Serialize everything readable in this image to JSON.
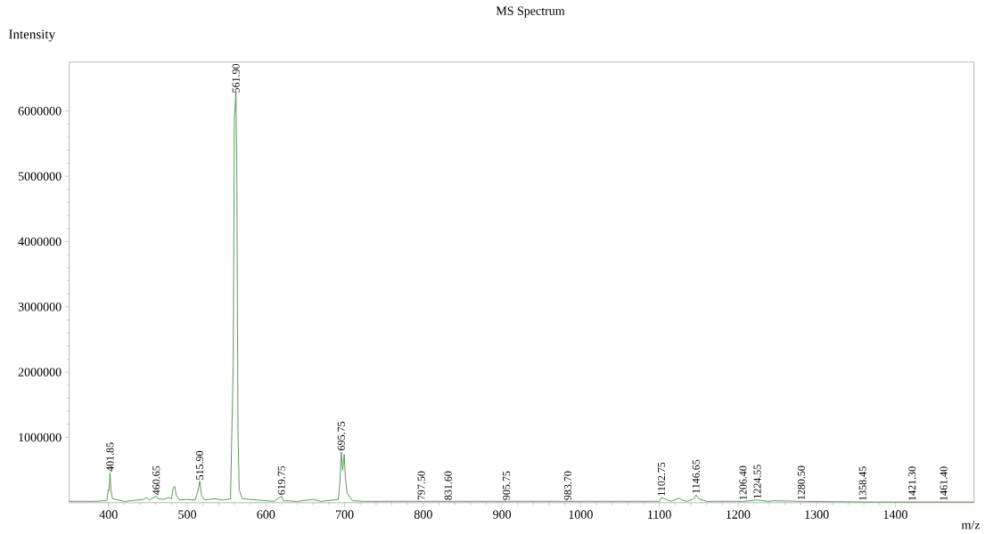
{
  "chart_data": {
    "type": "line",
    "title": "MS Spectrum",
    "xlabel": "m/z",
    "ylabel": "Intensity",
    "x": [
      350,
      380,
      398,
      399.5,
      400.5,
      401.85,
      403,
      405,
      420,
      445,
      448,
      452,
      460.65,
      463,
      470,
      476,
      480,
      482,
      484,
      486,
      490,
      500,
      510,
      514,
      515.9,
      518,
      522,
      535,
      545,
      555,
      558.5,
      559.9,
      561.9,
      563,
      564.5,
      566,
      570,
      590,
      610,
      619.75,
      622,
      640,
      660,
      670,
      692,
      694,
      695.75,
      697.5,
      699.5,
      701,
      703,
      710,
      725,
      760,
      797.5,
      831.6,
      860,
      905.75,
      983.7,
      1050,
      1100,
      1102.75,
      1106,
      1115,
      1125,
      1129,
      1135,
      1144,
      1146.65,
      1150,
      1160,
      1206.4,
      1224.55,
      1240,
      1245,
      1280.5,
      1358.45,
      1421.3,
      1461.4,
      1500
    ],
    "series": [
      {
        "color": "#4a8f4a",
        "values": [
          20000,
          20000,
          30000,
          200000,
          180000,
          460000,
          200000,
          60000,
          20000,
          50000,
          80000,
          40000,
          100000,
          60000,
          50000,
          80000,
          60000,
          220000,
          250000,
          120000,
          40000,
          50000,
          40000,
          200000,
          330000,
          120000,
          40000,
          60000,
          40000,
          60000,
          2150000,
          5900000,
          6300000,
          5100000,
          1100000,
          200000,
          60000,
          40000,
          20000,
          100000,
          30000,
          20000,
          50000,
          20000,
          50000,
          300000,
          780000,
          500000,
          740000,
          380000,
          150000,
          30000,
          20000,
          20000,
          20000,
          20000,
          20000,
          20000,
          20000,
          20000,
          20000,
          80000,
          60000,
          20000,
          70000,
          40000,
          20000,
          60000,
          120000,
          60000,
          20000,
          20000,
          40000,
          20000,
          30000,
          20000,
          10000,
          10000,
          10000,
          10000
        ]
      }
    ],
    "xlim": [
      350,
      1500
    ],
    "ylim": [
      0,
      6750000
    ],
    "xticks": [
      400,
      500,
      600,
      700,
      800,
      900,
      1000,
      1100,
      1200,
      1300,
      1400
    ],
    "yticks": [
      1000000,
      2000000,
      3000000,
      4000000,
      5000000,
      6000000
    ],
    "grid": false,
    "marker": "none",
    "line_style": "solid",
    "annotations": [
      {
        "text": "401.85",
        "x": 401.85,
        "y": 460000
      },
      {
        "text": "460.65",
        "x": 460.65,
        "y": 100000
      },
      {
        "text": "515.90",
        "x": 515.9,
        "y": 330000
      },
      {
        "text": "561.90",
        "x": 561.9,
        "y": 6300000
      },
      {
        "text": "619.75",
        "x": 619.75,
        "y": 100000
      },
      {
        "text": "695.75",
        "x": 695.75,
        "y": 780000
      },
      {
        "text": "797.50",
        "x": 797.5,
        "y": 20000
      },
      {
        "text": "831.60",
        "x": 831.6,
        "y": 20000
      },
      {
        "text": "905.75",
        "x": 905.75,
        "y": 20000
      },
      {
        "text": "983.70",
        "x": 983.7,
        "y": 20000
      },
      {
        "text": "1102.75",
        "x": 1102.75,
        "y": 80000
      },
      {
        "text": "1146.65",
        "x": 1146.65,
        "y": 120000
      },
      {
        "text": "1206.40",
        "x": 1206.4,
        "y": 20000
      },
      {
        "text": "1224.55",
        "x": 1224.55,
        "y": 40000
      },
      {
        "text": "1280.50",
        "x": 1280.5,
        "y": 20000
      },
      {
        "text": "1358.45",
        "x": 1358.45,
        "y": 10000
      },
      {
        "text": "1421.30",
        "x": 1421.3,
        "y": 10000
      },
      {
        "text": "1461.40",
        "x": 1461.4,
        "y": 10000
      }
    ]
  }
}
